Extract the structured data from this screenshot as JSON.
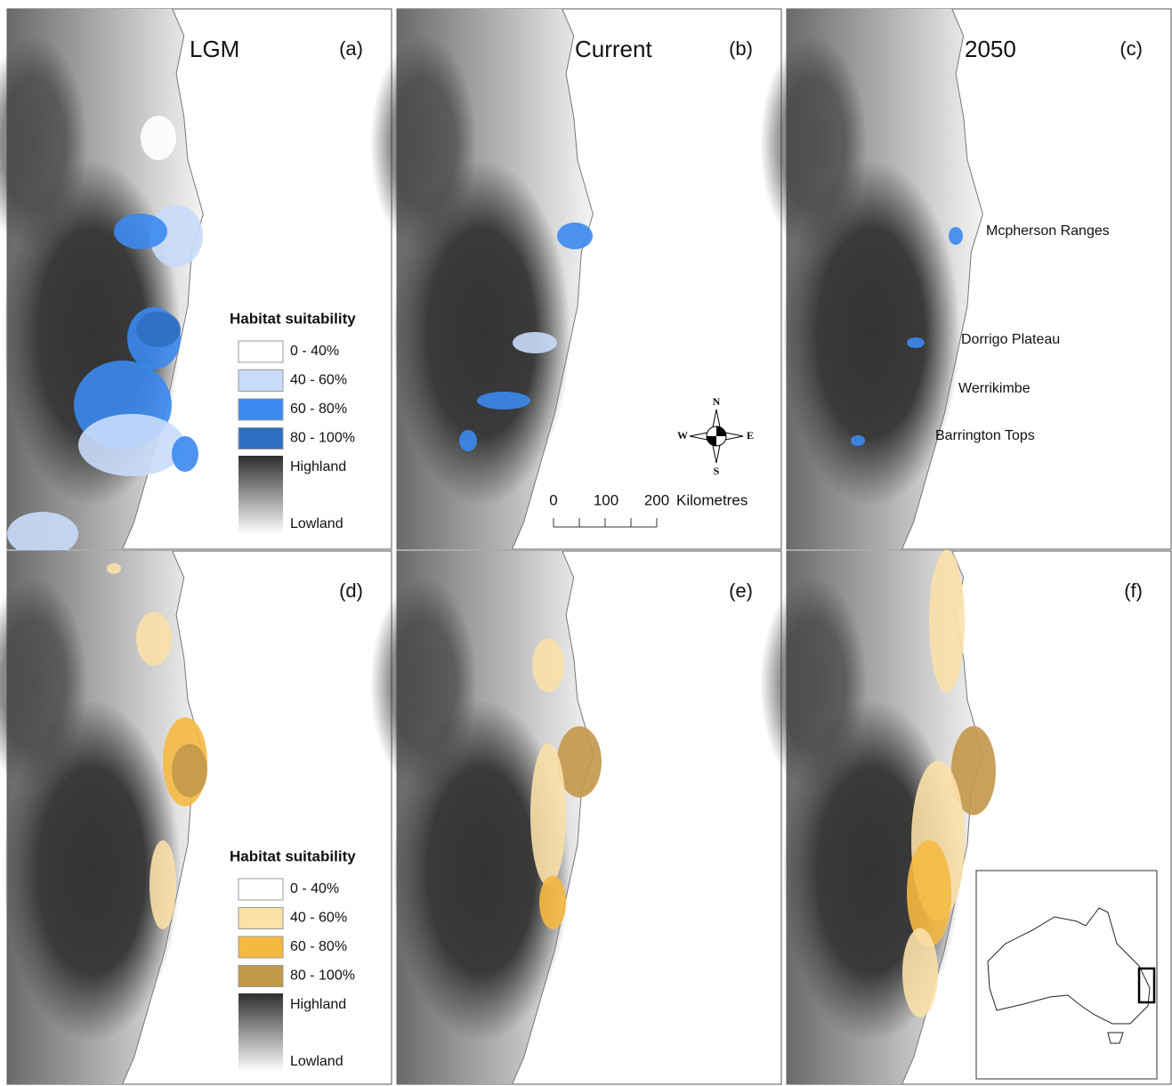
{
  "panels": [
    {
      "label": "(a)",
      "title": "LGM"
    },
    {
      "label": "(b)",
      "title": "Current"
    },
    {
      "label": "(c)",
      "title": "2050"
    },
    {
      "label": "(d)"
    },
    {
      "label": "(e)"
    },
    {
      "label": "(f)"
    }
  ],
  "legends": [
    {
      "title": "Habitat suitability",
      "items": [
        {
          "label": "0 - 40%",
          "color": "#ffffff"
        },
        {
          "label": "40 - 60%",
          "color": "#c9dcfb"
        },
        {
          "label": "60 - 80%",
          "color": "#3a8af0"
        },
        {
          "label": "80 - 100%",
          "color": "#2f6fc2"
        }
      ],
      "highland": "Highland",
      "lowland": "Lowland"
    },
    {
      "title": "Habitat suitability",
      "items": [
        {
          "label": "0 - 40%",
          "color": "#ffffff"
        },
        {
          "label": "40 - 60%",
          "color": "#fbe0a8"
        },
        {
          "label": "60 - 80%",
          "color": "#f5b942"
        },
        {
          "label": "80 - 100%",
          "color": "#c2984a"
        }
      ],
      "highland": "Highland",
      "lowland": "Lowland"
    }
  ],
  "place_names": [
    "Mcpherson Ranges",
    "Dorrigo Plateau",
    "Werrikimbe",
    "Barrington Tops"
  ],
  "scale_bar": {
    "ticks": [
      "0",
      "100",
      "200"
    ],
    "unit": "Kilometres"
  },
  "compass": [
    "N",
    "E",
    "S",
    "W"
  ]
}
